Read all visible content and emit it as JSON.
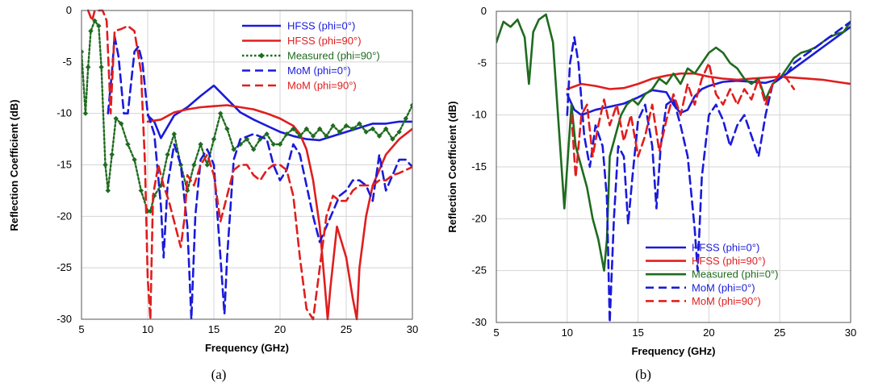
{
  "chart_data": [
    {
      "type": "line",
      "caption": "(a)",
      "xlabel": "Frequency (GHz)",
      "ylabel": "Reflection Coefficient (dB)",
      "xlim": [
        5,
        30
      ],
      "ylim": [
        -30,
        0
      ],
      "xticks": [
        5,
        10,
        15,
        20,
        25,
        30
      ],
      "yticks": [
        0,
        -5,
        -10,
        -15,
        -20,
        -25,
        -30
      ],
      "grid": true,
      "legend_position": "top-right",
      "series": [
        {
          "name": "HFSS (phi=0°)",
          "color": "#1a1adb",
          "style": "solid",
          "x": [
            10,
            10.5,
            11,
            12,
            13,
            14,
            15,
            16,
            17,
            18,
            19,
            20,
            21,
            22,
            23,
            24,
            25,
            26,
            27,
            28,
            29,
            30
          ],
          "y": [
            -10.2,
            -10.8,
            -12.4,
            -10.2,
            -9.4,
            -8.3,
            -7.3,
            -8.6,
            -9.9,
            -10.6,
            -11.2,
            -11.8,
            -12.2,
            -12.5,
            -12.6,
            -12.2,
            -11.8,
            -11.4,
            -11.0,
            -11.0,
            -10.8,
            -10.8
          ]
        },
        {
          "name": "HFSS (phi=90°)",
          "color": "#e01e1e",
          "style": "solid",
          "x": [
            10,
            11,
            12,
            13,
            14,
            15,
            16,
            17,
            18,
            19,
            20,
            21,
            21.5,
            22,
            22.5,
            23,
            23.4,
            23.6,
            23.8,
            24.3,
            25,
            25.5,
            25.8,
            26,
            26.5,
            27,
            28,
            29,
            30
          ],
          "y": [
            -10.8,
            -10.6,
            -9.9,
            -9.6,
            -9.4,
            -9.3,
            -9.2,
            -9.4,
            -9.6,
            -10.0,
            -10.5,
            -11.2,
            -12.0,
            -13.5,
            -16.5,
            -21.0,
            -27.0,
            -30.0,
            -27.0,
            -21.0,
            -24.0,
            -28.0,
            -30.0,
            -25.0,
            -20.0,
            -17.0,
            -14.0,
            -12.5,
            -11.5
          ]
        },
        {
          "name": "Measured (phi=90°)",
          "color": "#1f6b1f",
          "style": "dotted-diamond",
          "x": [
            5,
            5.3,
            5.5,
            5.7,
            6,
            6.3,
            6.5,
            6.8,
            7,
            7.3,
            7.6,
            8,
            8.5,
            9,
            9.5,
            10,
            10.2,
            10.5,
            11,
            11.5,
            12,
            12.5,
            13,
            13.5,
            14,
            14.5,
            15,
            15.5,
            16,
            16.5,
            17,
            17.5,
            18,
            18.5,
            19,
            19.5,
            20,
            20.5,
            21,
            21.5,
            22,
            22.5,
            23,
            23.5,
            24,
            24.5,
            25,
            25.5,
            26,
            26.5,
            27,
            27.5,
            28,
            28.5,
            29,
            29.5,
            30
          ],
          "y": [
            -4,
            -10,
            -5.5,
            -2,
            -1,
            -1.5,
            -5.5,
            -15,
            -17.5,
            -14,
            -10.5,
            -11,
            -13,
            -14.5,
            -17.5,
            -19.5,
            -19.5,
            -18,
            -17,
            -14,
            -12,
            -15,
            -17.5,
            -15,
            -13,
            -15,
            -12.5,
            -10,
            -11.5,
            -13.5,
            -13,
            -12.5,
            -13.5,
            -12.5,
            -12,
            -13,
            -13,
            -12,
            -11.5,
            -12.2,
            -11.5,
            -12.2,
            -11.5,
            -12.2,
            -11.2,
            -11.8,
            -11.2,
            -11.5,
            -11.0,
            -11.8,
            -11.5,
            -12.2,
            -11.5,
            -12.5,
            -11.8,
            -10.5,
            -9.2
          ]
        },
        {
          "name": "MoM (phi=0°)",
          "color": "#1a1adb",
          "style": "dashed",
          "x": [
            7,
            7.3,
            7.5,
            7.8,
            8.2,
            8.5,
            9,
            9.3,
            9.6,
            10,
            10.5,
            11,
            11.2,
            11.5,
            12,
            12.5,
            13,
            13.3,
            13.6,
            14,
            14.5,
            15,
            15.5,
            15.8,
            16,
            16.5,
            17,
            18,
            19,
            19.5,
            20,
            20.5,
            21,
            21.5,
            22,
            22.5,
            23,
            23.5,
            24,
            24.5,
            25,
            25.5,
            26,
            26.5,
            27,
            27.5,
            28,
            28.5,
            29,
            29.5,
            30
          ],
          "y": [
            -10,
            -6,
            -2.5,
            -4.5,
            -10,
            -10,
            -4,
            -3.5,
            -5,
            -10,
            -12,
            -19,
            -24,
            -17,
            -13,
            -15,
            -21,
            -30,
            -20,
            -14.5,
            -13.5,
            -15,
            -24,
            -29.5,
            -24,
            -14.5,
            -12.5,
            -12,
            -12.5,
            -15,
            -16.5,
            -15.5,
            -13,
            -14,
            -17,
            -20,
            -22.5,
            -21,
            -19.5,
            -18,
            -17.5,
            -16.5,
            -16.5,
            -17.0,
            -18.5,
            -14,
            -17.5,
            -16,
            -14.5,
            -14.5,
            -15.2
          ]
        },
        {
          "name": "MoM (phi=90°)",
          "color": "#e01e1e",
          "style": "dashed",
          "x": [
            5.5,
            5.8,
            6,
            6.3,
            6.6,
            6.9,
            7.2,
            7.5,
            8,
            8.5,
            9,
            9.5,
            9.8,
            10,
            10.2,
            10.4,
            10.8,
            11.2,
            11.6,
            12,
            12.5,
            12.8,
            13,
            13.5,
            14,
            14.5,
            15,
            15.5,
            16,
            16.5,
            17,
            17.5,
            18,
            18.5,
            19,
            19.5,
            20,
            20.5,
            21,
            21.5,
            22,
            22.5,
            23,
            23.5,
            24,
            24.5,
            25,
            25.5,
            26,
            26.5,
            27,
            27.5,
            28,
            28.5,
            29,
            29.5,
            30
          ],
          "y": [
            0,
            -1,
            0,
            0,
            0,
            -1,
            -10,
            -2,
            -1.8,
            -1.5,
            -2,
            -6,
            -15,
            -26,
            -30,
            -18,
            -15,
            -17,
            -18.5,
            -20.5,
            -23,
            -20,
            -16,
            -17,
            -15,
            -14,
            -16,
            -20.5,
            -18,
            -15.5,
            -15,
            -15,
            -16,
            -16.5,
            -15.5,
            -15,
            -15,
            -15.5,
            -18,
            -24,
            -29,
            -30,
            -25,
            -20,
            -18,
            -18.5,
            -18.5,
            -17.5,
            -17,
            -17,
            -17,
            -16.5,
            -16.5,
            -16,
            -15.8,
            -15.5,
            -15.2
          ]
        }
      ]
    },
    {
      "type": "line",
      "caption": "(b)",
      "xlabel": "Frequency (GHz)",
      "ylabel": "Reflection Coefficient (dB)",
      "xlim": [
        5,
        30
      ],
      "ylim": [
        -30,
        0
      ],
      "xticks": [
        5,
        10,
        15,
        20,
        25,
        30
      ],
      "yticks": [
        0,
        -5,
        -10,
        -15,
        -20,
        -25,
        -30
      ],
      "grid": true,
      "legend_position": "bottom-right",
      "series": [
        {
          "name": "HFSS (phi=0°)",
          "color": "#1a1adb",
          "style": "solid",
          "x": [
            10,
            10.5,
            11,
            12,
            13,
            14,
            15,
            16,
            17,
            17.5,
            18,
            18.5,
            19,
            19.5,
            20,
            21,
            22,
            23,
            24,
            25,
            26,
            27,
            28,
            29,
            30
          ],
          "y": [
            -8,
            -9.5,
            -10,
            -9.5,
            -9.2,
            -8.9,
            -8.3,
            -7.6,
            -7.8,
            -9.0,
            -9.8,
            -9.5,
            -8.2,
            -7.5,
            -7.2,
            -6.8,
            -6.7,
            -6.8,
            -6.9,
            -6.5,
            -5.5,
            -4.5,
            -3.5,
            -2.5,
            -1.5
          ]
        },
        {
          "name": "HFSS (phi=90°)",
          "color": "#e01e1e",
          "style": "solid",
          "x": [
            10,
            11,
            12,
            13,
            14,
            15,
            16,
            17,
            18,
            19,
            20,
            21,
            22,
            23,
            24,
            25,
            26,
            27,
            28,
            29,
            30
          ],
          "y": [
            -7.5,
            -7.0,
            -7.2,
            -7.5,
            -7.4,
            -7.0,
            -6.5,
            -6.2,
            -6.0,
            -6.0,
            -6.3,
            -6.5,
            -6.6,
            -6.5,
            -6.4,
            -6.3,
            -6.4,
            -6.5,
            -6.6,
            -6.8,
            -7.0
          ]
        },
        {
          "name": "Measured (phi=0°)",
          "color": "#1f6b1f",
          "style": "solid",
          "x": [
            5,
            5.5,
            6,
            6.5,
            7,
            7.3,
            7.6,
            8,
            8.5,
            9,
            9.3,
            9.6,
            9.8,
            10,
            10.3,
            10.6,
            11,
            11.4,
            11.8,
            12.2,
            12.6,
            12.8,
            13,
            13.4,
            13.8,
            14.2,
            14.6,
            15,
            15.5,
            16,
            16.5,
            17,
            17.5,
            18,
            18.5,
            19,
            19.5,
            20,
            20.5,
            21,
            21.5,
            22,
            22.5,
            23,
            23.5,
            24,
            24.5,
            25,
            25.5,
            26,
            26.5,
            27,
            27.5,
            28,
            28.5,
            29,
            29.5,
            30
          ],
          "y": [
            -3,
            -1,
            -1.5,
            -0.8,
            -2.5,
            -7,
            -2,
            -0.8,
            -0.3,
            -3,
            -9,
            -15,
            -19,
            -15,
            -9,
            -13,
            -15,
            -17,
            -20,
            -22,
            -25,
            -22,
            -14,
            -12,
            -10,
            -9,
            -8.5,
            -9,
            -8,
            -7.5,
            -6.5,
            -7,
            -6,
            -7,
            -5.5,
            -6,
            -5,
            -4,
            -3.5,
            -4,
            -5,
            -5.5,
            -6.5,
            -7.0,
            -6.5,
            -8.5,
            -7,
            -6.5,
            -5.5,
            -4.5,
            -4.0,
            -3.8,
            -3.5,
            -3.0,
            -2.5,
            -2.2,
            -2.0,
            -1.0
          ]
        },
        {
          "name": "MoM (phi=0°)",
          "color": "#1a1adb",
          "style": "dashed",
          "x": [
            10,
            10.2,
            10.5,
            10.8,
            11.2,
            11.6,
            12,
            12.5,
            12.8,
            13,
            13.3,
            13.6,
            14,
            14.3,
            14.6,
            15,
            15.5,
            16,
            16.3,
            16.6,
            17,
            17.5,
            18,
            18.5,
            19,
            19.2,
            19.5,
            20,
            20.5,
            21,
            21.5,
            22,
            22.5,
            23,
            23.5,
            24,
            24.5,
            25,
            25.5,
            26,
            27,
            28,
            29,
            30
          ],
          "y": [
            -10,
            -5,
            -2.5,
            -5,
            -12,
            -15,
            -11,
            -13,
            -18,
            -30,
            -20,
            -13,
            -14,
            -20.5,
            -16,
            -10.5,
            -9,
            -13,
            -19,
            -13,
            -9,
            -8.5,
            -11,
            -14,
            -21,
            -25,
            -16,
            -10,
            -9,
            -10.5,
            -13,
            -11,
            -10,
            -12,
            -14,
            -10,
            -7,
            -6.5,
            -6,
            -5,
            -4,
            -3,
            -2,
            -1
          ]
        },
        {
          "name": "MoM (phi=90°)",
          "color": "#e01e1e",
          "style": "dashed",
          "x": [
            10.3,
            10.6,
            11,
            11.4,
            11.8,
            12.2,
            12.6,
            13,
            13.5,
            14,
            14.5,
            15,
            15.5,
            16,
            16.5,
            17,
            17.5,
            18,
            18.5,
            19,
            19.5,
            20,
            20.5,
            21,
            21.5,
            22,
            22.5,
            23,
            23.5,
            24,
            24.5,
            25,
            25.5,
            26
          ],
          "y": [
            -10,
            -16,
            -10,
            -9,
            -14,
            -11,
            -8.5,
            -11,
            -9,
            -12.5,
            -10,
            -14,
            -12,
            -9,
            -13.5,
            -10.5,
            -8,
            -10,
            -7,
            -9,
            -6.5,
            -5,
            -8,
            -9,
            -7.5,
            -9,
            -7.5,
            -8.5,
            -6.5,
            -9,
            -7,
            -6,
            -6.5,
            -7.5
          ]
        }
      ]
    }
  ]
}
